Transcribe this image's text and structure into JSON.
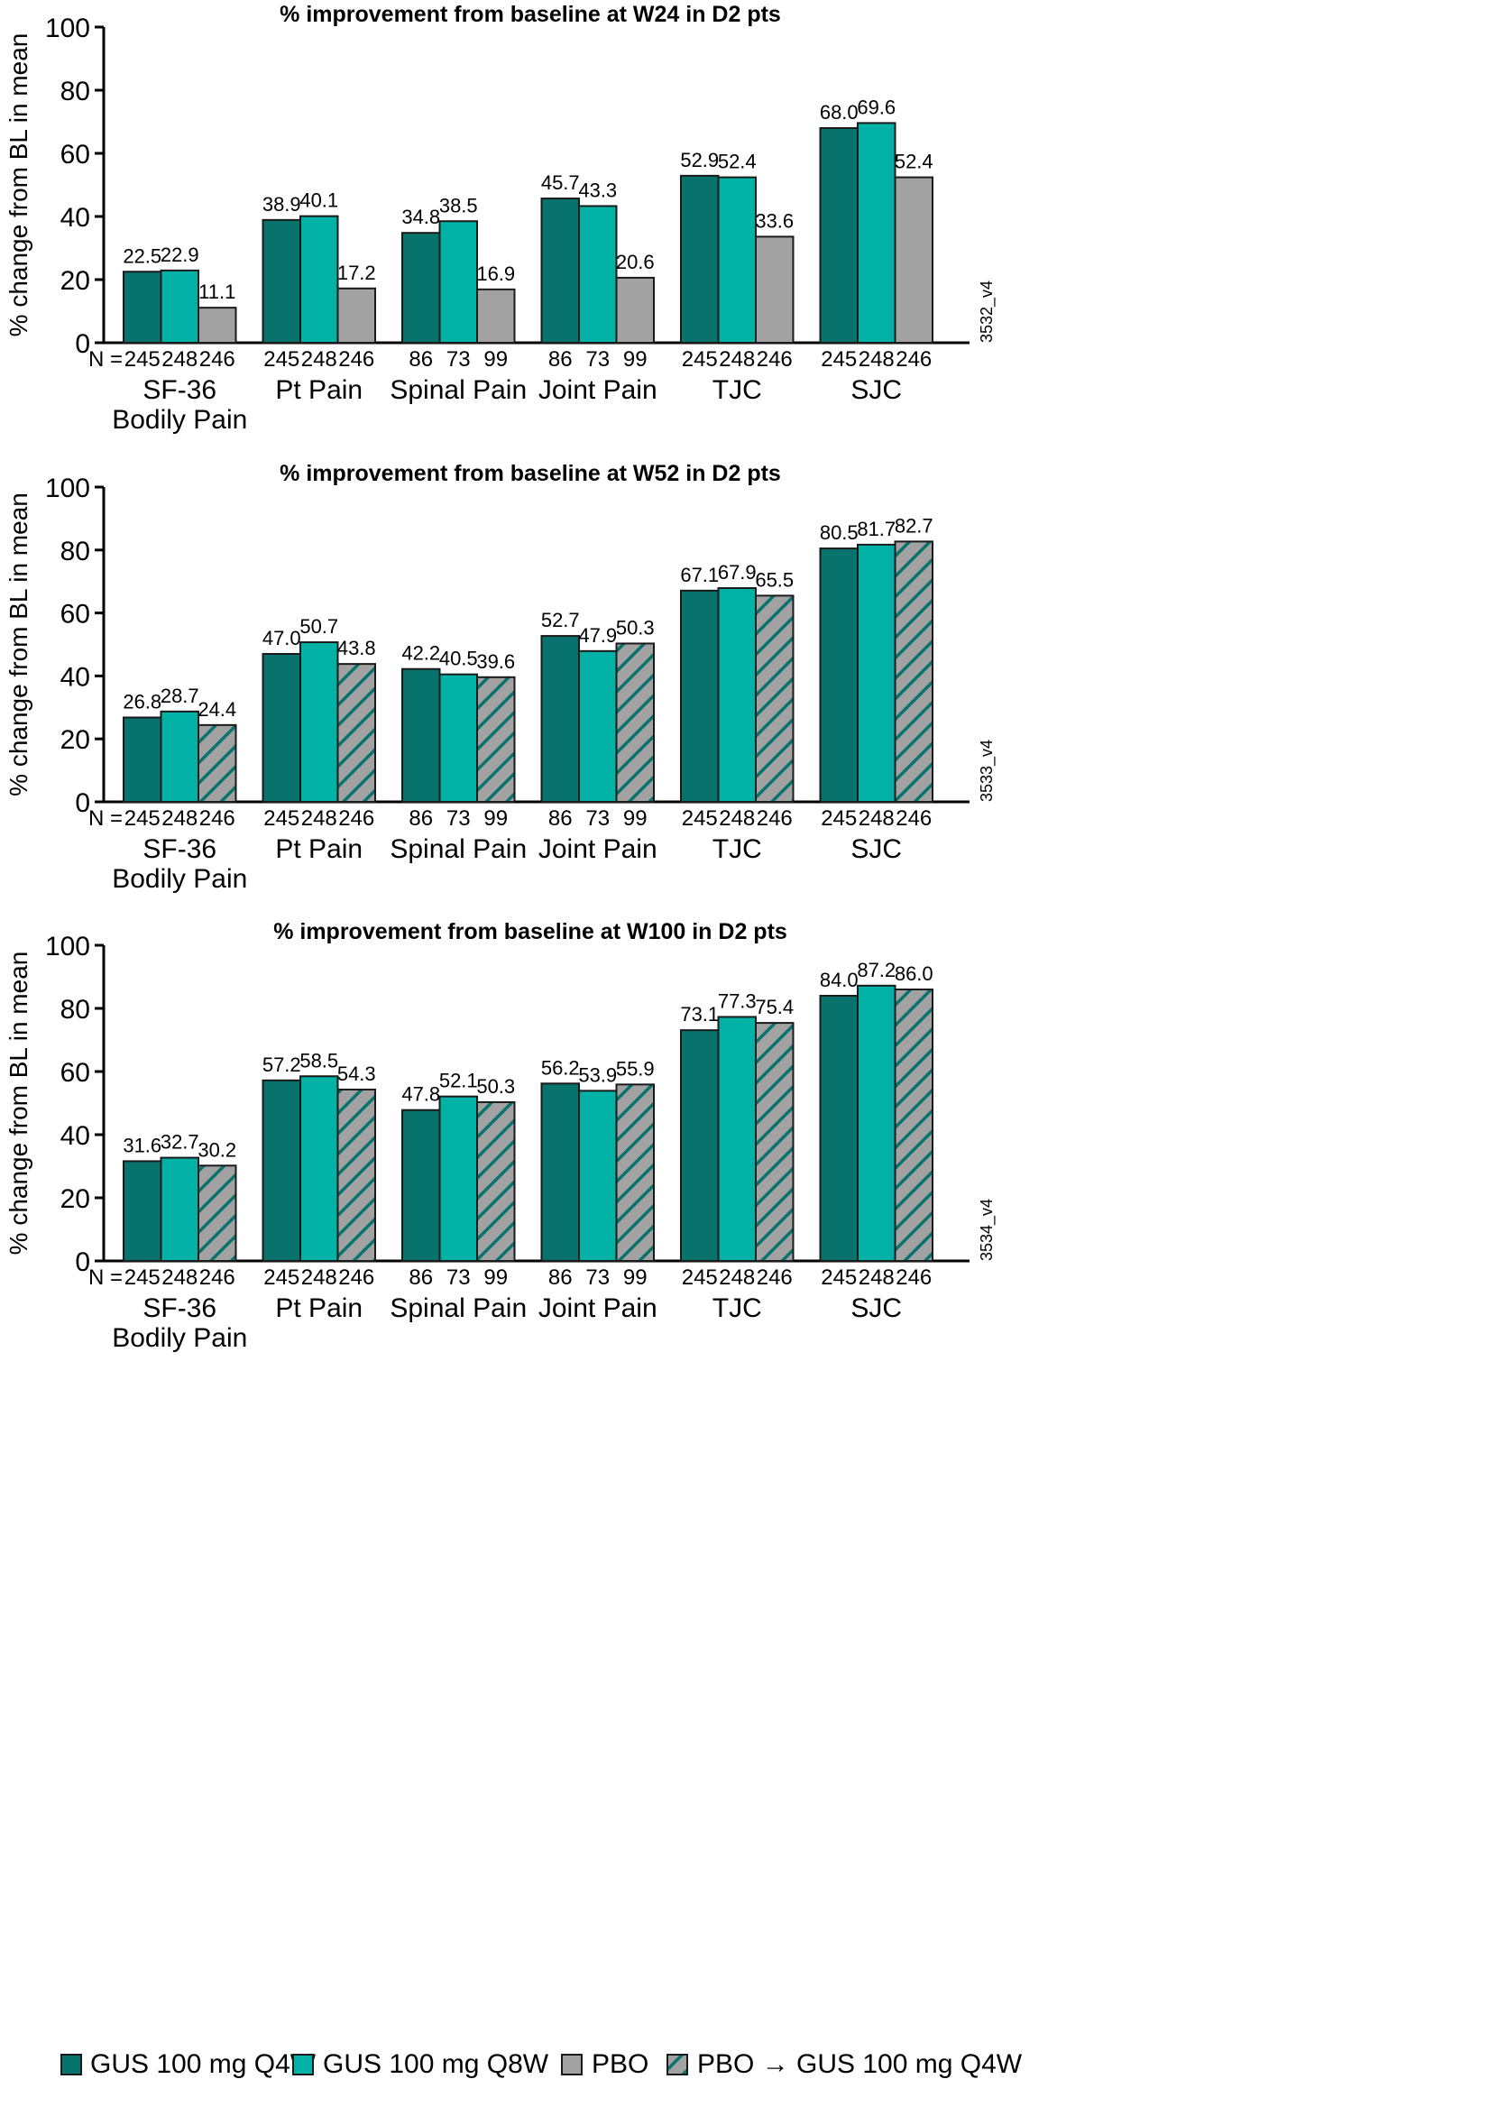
{
  "colors": {
    "gus_q4w": "#08736c",
    "gus_q8w": "#03b2a7",
    "pbo": "#a2a2a2",
    "pbo_gus_hatch_bg": "#a2a2a2",
    "pbo_gus_hatch_line": "#08736c"
  },
  "legend": {
    "items": [
      {
        "label": "GUS 100 mg Q4W",
        "key": "gus_q4w"
      },
      {
        "label": "GUS 100 mg Q8W",
        "key": "gus_q8w"
      },
      {
        "label": "PBO",
        "key": "pbo"
      },
      {
        "label": "PBO → GUS 100 mg Q4W",
        "key": "pbo_gus"
      }
    ]
  },
  "chart_data": [
    {
      "type": "bar",
      "title": "% improvement from baseline at W24 in D2 pts",
      "ylabel": "% change from BL in mean",
      "xlabel": "",
      "ylim": [
        0,
        100
      ],
      "yticks": [
        0,
        20,
        40,
        60,
        80,
        100
      ],
      "grid": false,
      "code": "3532_v4",
      "n_prefix": "N =",
      "categories": [
        [
          "SF-36",
          "Bodily Pain"
        ],
        [
          "Pt Pain"
        ],
        [
          "Spinal Pain"
        ],
        [
          "Joint Pain"
        ],
        [
          "TJC"
        ],
        [
          "SJC"
        ]
      ],
      "series": [
        {
          "name": "GUS 100 mg Q4W",
          "key": "gus_q4w",
          "values": [
            22.5,
            38.9,
            34.8,
            45.7,
            52.9,
            68.0
          ],
          "labels": [
            "22.5",
            "38.9",
            "34.8",
            "45.7",
            "52.9",
            "68.0"
          ],
          "n": [
            245,
            245,
            86,
            86,
            245,
            245
          ]
        },
        {
          "name": "GUS 100 mg Q8W",
          "key": "gus_q8w",
          "values": [
            22.9,
            40.1,
            38.5,
            43.3,
            52.4,
            69.6
          ],
          "labels": [
            "22.9",
            "40.1",
            "38.5",
            "43.3",
            "52.4",
            "69.6"
          ],
          "n": [
            248,
            248,
            73,
            73,
            248,
            248
          ]
        },
        {
          "name": "PBO",
          "key": "pbo",
          "values": [
            11.1,
            17.2,
            16.9,
            20.6,
            33.6,
            52.4
          ],
          "labels": [
            "11.1",
            "17.2",
            "16.9",
            "20.6",
            "33.6",
            "52.4"
          ],
          "n": [
            246,
            246,
            99,
            99,
            246,
            246
          ]
        }
      ]
    },
    {
      "type": "bar",
      "title": "% improvement from baseline at W52 in D2 pts",
      "ylabel": "% change from BL in mean",
      "xlabel": "",
      "ylim": [
        0,
        100
      ],
      "yticks": [
        0,
        20,
        40,
        60,
        80,
        100
      ],
      "grid": false,
      "code": "3533_v4",
      "n_prefix": "N =",
      "categories": [
        [
          "SF-36",
          "Bodily Pain"
        ],
        [
          "Pt Pain"
        ],
        [
          "Spinal Pain"
        ],
        [
          "Joint Pain"
        ],
        [
          "TJC"
        ],
        [
          "SJC"
        ]
      ],
      "series": [
        {
          "name": "GUS 100 mg Q4W",
          "key": "gus_q4w",
          "values": [
            26.8,
            47.0,
            42.2,
            52.7,
            67.1,
            80.5
          ],
          "labels": [
            "26.8",
            "47.0",
            "42.2",
            "52.7",
            "67.1",
            "80.5"
          ],
          "n": [
            245,
            245,
            86,
            86,
            245,
            245
          ]
        },
        {
          "name": "GUS 100 mg Q8W",
          "key": "gus_q8w",
          "values": [
            28.7,
            50.7,
            40.5,
            47.9,
            67.9,
            81.7
          ],
          "labels": [
            "28.7",
            "50.7",
            "40.5",
            "47.9",
            "67.9",
            "81.7"
          ],
          "n": [
            248,
            248,
            73,
            73,
            248,
            248
          ]
        },
        {
          "name": "PBO → GUS 100 mg Q4W",
          "key": "pbo_gus",
          "values": [
            24.4,
            43.8,
            39.6,
            50.3,
            65.5,
            82.7
          ],
          "labels": [
            "24.4",
            "43.8",
            "39.6",
            "50.3",
            "65.5",
            "82.7"
          ],
          "n": [
            246,
            246,
            99,
            99,
            246,
            246
          ]
        }
      ]
    },
    {
      "type": "bar",
      "title": "% improvement from baseline at W100 in D2 pts",
      "ylabel": "% change from BL in mean",
      "xlabel": "",
      "ylim": [
        0,
        100
      ],
      "yticks": [
        0,
        20,
        40,
        60,
        80,
        100
      ],
      "grid": false,
      "code": "3534_v4",
      "n_prefix": "N =",
      "categories": [
        [
          "SF-36",
          "Bodily Pain"
        ],
        [
          "Pt Pain"
        ],
        [
          "Spinal Pain"
        ],
        [
          "Joint Pain"
        ],
        [
          "TJC"
        ],
        [
          "SJC"
        ]
      ],
      "series": [
        {
          "name": "GUS 100 mg Q4W",
          "key": "gus_q4w",
          "values": [
            31.6,
            57.2,
            47.8,
            56.2,
            73.1,
            84.0
          ],
          "labels": [
            "31.6",
            "57.2",
            "47.8",
            "56.2",
            "73.1",
            "84.0"
          ],
          "n": [
            245,
            245,
            86,
            86,
            245,
            245
          ]
        },
        {
          "name": "GUS 100 mg Q8W",
          "key": "gus_q8w",
          "values": [
            32.7,
            58.5,
            52.1,
            53.9,
            77.3,
            87.2
          ],
          "labels": [
            "32.7",
            "58.5",
            "52.1",
            "53.9",
            "77.3",
            "87.2"
          ],
          "n": [
            248,
            248,
            73,
            73,
            248,
            248
          ]
        },
        {
          "name": "PBO → GUS 100 mg Q4W",
          "key": "pbo_gus",
          "values": [
            30.2,
            54.3,
            50.3,
            55.9,
            75.4,
            86.0
          ],
          "labels": [
            "30.2",
            "54.3",
            "50.3",
            "55.9",
            "75.4",
            "86.0"
          ],
          "n": [
            246,
            246,
            99,
            99,
            246,
            246
          ]
        }
      ]
    }
  ]
}
